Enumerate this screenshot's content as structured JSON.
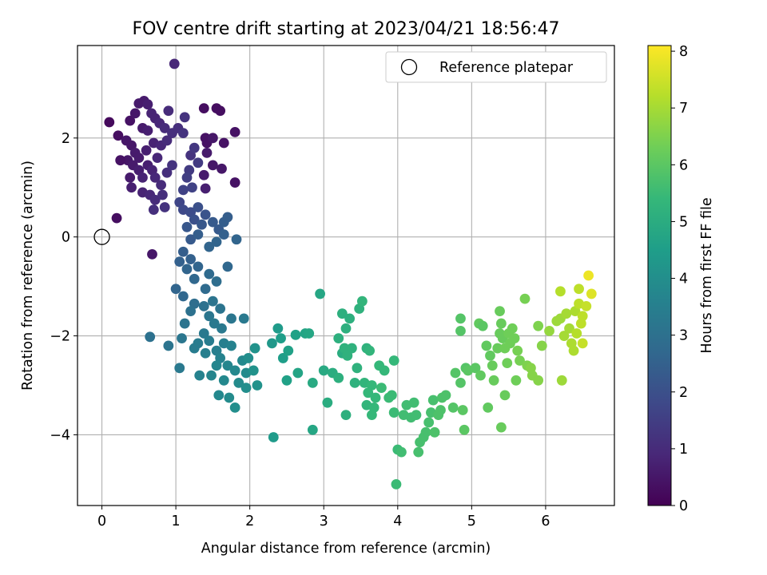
{
  "chart_data": {
    "type": "scatter",
    "title": "FOV centre drift starting at 2023/04/21 18:56:47",
    "xlabel": "Angular distance from reference (arcmin)",
    "ylabel": "Rotation from reference (arcmin)",
    "xlim": [
      -0.33,
      6.93
    ],
    "ylim": [
      -5.43,
      3.87
    ],
    "xticks": [
      "0",
      "1",
      "2",
      "3",
      "4",
      "5",
      "6"
    ],
    "yticks": [
      "−4",
      "−2",
      "0",
      "2"
    ],
    "grid": true,
    "legend": {
      "placement": "top-right",
      "label": "Reference platepar"
    },
    "reference": {
      "x": 0,
      "y": 0
    },
    "colorbar": {
      "label": "Hours from first FF file",
      "min": 0,
      "max": 8.1,
      "ticks": [
        "0",
        "1",
        "2",
        "3",
        "4",
        "5",
        "6",
        "7",
        "8"
      ],
      "colormap": "viridis",
      "stops": [
        "#440154",
        "#482878",
        "#3e4989",
        "#31688e",
        "#26828e",
        "#1f9e89",
        "#35b779",
        "#6ece58",
        "#b5de2b",
        "#fde725"
      ]
    },
    "points": [
      [
        0.1,
        2.32,
        0.2
      ],
      [
        0.22,
        2.05,
        0.3
      ],
      [
        0.33,
        1.95,
        0.5
      ],
      [
        0.38,
        2.35,
        0.4
      ],
      [
        0.45,
        2.5,
        0.5
      ],
      [
        0.5,
        2.7,
        0.6
      ],
      [
        0.57,
        2.75,
        0.6
      ],
      [
        0.62,
        2.68,
        0.7
      ],
      [
        0.67,
        2.5,
        0.8
      ],
      [
        0.72,
        2.4,
        0.8
      ],
      [
        0.55,
        2.2,
        0.6
      ],
      [
        0.62,
        2.15,
        0.7
      ],
      [
        0.78,
        2.3,
        0.9
      ],
      [
        0.85,
        2.2,
        1.0
      ],
      [
        0.9,
        2.55,
        1.0
      ],
      [
        0.95,
        2.1,
        1.1
      ],
      [
        1.03,
        2.2,
        1.1
      ],
      [
        1.12,
        2.42,
        1.2
      ],
      [
        1.1,
        2.1,
        1.2
      ],
      [
        0.4,
        1.85,
        0.5
      ],
      [
        0.45,
        1.7,
        0.6
      ],
      [
        0.5,
        1.6,
        0.6
      ],
      [
        0.6,
        1.75,
        0.7
      ],
      [
        0.7,
        1.9,
        0.8
      ],
      [
        0.75,
        1.6,
        0.9
      ],
      [
        0.8,
        1.85,
        0.9
      ],
      [
        0.88,
        1.95,
        1.0
      ],
      [
        0.98,
        3.5,
        0.9
      ],
      [
        0.35,
        1.55,
        0.5
      ],
      [
        0.42,
        1.45,
        0.6
      ],
      [
        0.5,
        1.35,
        0.7
      ],
      [
        0.55,
        1.2,
        0.8
      ],
      [
        0.62,
        1.45,
        0.7
      ],
      [
        0.68,
        1.35,
        0.8
      ],
      [
        0.72,
        1.2,
        0.9
      ],
      [
        0.8,
        1.05,
        1.0
      ],
      [
        0.88,
        1.3,
        1.1
      ],
      [
        0.95,
        1.45,
        1.2
      ],
      [
        0.25,
        1.55,
        0.4
      ],
      [
        0.38,
        1.2,
        0.6
      ],
      [
        0.4,
        1.0,
        0.7
      ],
      [
        0.55,
        0.9,
        0.8
      ],
      [
        0.65,
        0.85,
        0.9
      ],
      [
        0.72,
        0.75,
        1.0
      ],
      [
        0.82,
        0.85,
        1.1
      ],
      [
        0.7,
        0.55,
        1.1
      ],
      [
        0.85,
        0.6,
        1.2
      ],
      [
        0.2,
        0.38,
        0.3
      ],
      [
        0.68,
        -0.35,
        0.5
      ],
      [
        1.38,
        2.6,
        0.3
      ],
      [
        1.55,
        2.6,
        0.3
      ],
      [
        1.6,
        2.55,
        0.3
      ],
      [
        1.4,
        2.0,
        0.4
      ],
      [
        1.42,
        1.9,
        0.4
      ],
      [
        1.5,
        2.0,
        0.5
      ],
      [
        1.65,
        1.9,
        0.4
      ],
      [
        1.8,
        2.12,
        0.4
      ],
      [
        1.42,
        1.7,
        0.6
      ],
      [
        1.5,
        1.45,
        0.5
      ],
      [
        1.62,
        1.38,
        0.5
      ],
      [
        1.8,
        1.1,
        0.4
      ],
      [
        1.38,
        1.25,
        0.6
      ],
      [
        1.4,
        0.98,
        0.7
      ],
      [
        1.2,
        1.65,
        1.2
      ],
      [
        1.25,
        1.8,
        1.3
      ],
      [
        1.3,
        1.5,
        1.4
      ],
      [
        1.18,
        1.35,
        1.4
      ],
      [
        1.15,
        1.2,
        1.5
      ],
      [
        1.22,
        1.0,
        1.6
      ],
      [
        1.1,
        0.95,
        1.6
      ],
      [
        1.05,
        0.7,
        1.7
      ],
      [
        1.1,
        0.55,
        1.8
      ],
      [
        1.2,
        0.5,
        1.9
      ],
      [
        1.3,
        0.6,
        2.0
      ],
      [
        1.25,
        0.35,
        2.0
      ],
      [
        1.4,
        0.45,
        2.1
      ],
      [
        1.35,
        0.25,
        2.2
      ],
      [
        1.5,
        0.3,
        2.3
      ],
      [
        1.58,
        0.15,
        2.3
      ],
      [
        1.15,
        0.2,
        2.2
      ],
      [
        1.2,
        -0.05,
        2.3
      ],
      [
        1.3,
        0.05,
        2.4
      ],
      [
        1.1,
        -0.3,
        2.4
      ],
      [
        1.2,
        -0.45,
        2.5
      ],
      [
        1.45,
        -0.2,
        2.6
      ],
      [
        1.55,
        -0.1,
        2.6
      ],
      [
        1.65,
        0.3,
        2.4
      ],
      [
        1.7,
        0.4,
        2.4
      ],
      [
        1.65,
        0.05,
        2.5
      ],
      [
        1.82,
        -0.05,
        2.6
      ],
      [
        1.7,
        -0.6,
        2.7
      ],
      [
        1.05,
        -0.5,
        2.5
      ],
      [
        1.15,
        -0.65,
        2.6
      ],
      [
        1.25,
        -0.85,
        2.7
      ],
      [
        1.3,
        -0.6,
        2.6
      ],
      [
        1.45,
        -0.75,
        2.8
      ],
      [
        1.55,
        -0.9,
        2.9
      ],
      [
        1.4,
        -1.05,
        2.8
      ],
      [
        1.0,
        -1.05,
        2.6
      ],
      [
        1.1,
        -1.2,
        2.7
      ],
      [
        1.25,
        -1.35,
        2.9
      ],
      [
        1.38,
        -1.4,
        3.0
      ],
      [
        1.5,
        -1.3,
        3.1
      ],
      [
        1.6,
        -1.45,
        3.1
      ],
      [
        1.2,
        -1.5,
        3.0
      ],
      [
        1.45,
        -1.6,
        3.2
      ],
      [
        1.12,
        -1.75,
        3.1
      ],
      [
        1.52,
        -1.75,
        3.3
      ],
      [
        1.62,
        -1.85,
        3.3
      ],
      [
        1.75,
        -1.65,
        3.2
      ],
      [
        1.92,
        -1.65,
        3.3
      ],
      [
        1.38,
        -1.95,
        3.3
      ],
      [
        1.3,
        -2.15,
        3.4
      ],
      [
        1.45,
        -2.1,
        3.4
      ],
      [
        1.4,
        -2.35,
        3.5
      ],
      [
        1.55,
        -2.3,
        3.5
      ],
      [
        1.65,
        -2.15,
        3.5
      ],
      [
        1.75,
        -2.2,
        3.6
      ],
      [
        1.6,
        -2.45,
        3.6
      ],
      [
        1.55,
        -2.6,
        3.7
      ],
      [
        1.7,
        -2.6,
        3.7
      ],
      [
        1.8,
        -2.7,
        3.8
      ],
      [
        1.9,
        -2.5,
        3.8
      ],
      [
        1.95,
        -2.75,
        3.9
      ],
      [
        1.85,
        -2.95,
        3.9
      ],
      [
        1.65,
        -2.9,
        3.8
      ],
      [
        1.48,
        -2.8,
        3.7
      ],
      [
        1.32,
        -2.8,
        3.6
      ],
      [
        1.58,
        -3.2,
        3.8
      ],
      [
        1.72,
        -3.25,
        3.9
      ],
      [
        1.8,
        -3.45,
        4.0
      ],
      [
        1.95,
        -3.05,
        4.0
      ],
      [
        2.1,
        -3.0,
        4.1
      ],
      [
        2.05,
        -2.7,
        4.1
      ],
      [
        1.98,
        -2.45,
        4.0
      ],
      [
        2.07,
        -2.25,
        4.1
      ],
      [
        0.65,
        -2.02,
        3.0
      ],
      [
        0.9,
        -2.2,
        3.1
      ],
      [
        1.08,
        -2.05,
        3.2
      ],
      [
        1.05,
        -2.65,
        3.3
      ],
      [
        1.25,
        -2.25,
        3.4
      ],
      [
        2.32,
        -4.05,
        4.4
      ],
      [
        2.3,
        -2.15,
        4.3
      ],
      [
        2.38,
        -1.85,
        4.4
      ],
      [
        2.45,
        -2.45,
        4.5
      ],
      [
        2.5,
        -2.9,
        4.6
      ],
      [
        2.42,
        -2.05,
        4.5
      ],
      [
        2.52,
        -2.3,
        4.6
      ],
      [
        2.62,
        -1.98,
        4.6
      ],
      [
        2.65,
        -2.75,
        4.7
      ],
      [
        2.75,
        -1.95,
        4.7
      ],
      [
        2.8,
        -1.95,
        4.8
      ],
      [
        2.85,
        -3.9,
        4.8
      ],
      [
        2.85,
        -2.95,
        4.9
      ],
      [
        2.95,
        -1.15,
        4.8
      ],
      [
        3.0,
        -2.7,
        4.9
      ],
      [
        3.05,
        -3.35,
        5.0
      ],
      [
        3.12,
        -2.75,
        5.0
      ],
      [
        3.2,
        -2.85,
        5.1
      ],
      [
        3.25,
        -2.35,
        5.0
      ],
      [
        3.2,
        -2.05,
        5.1
      ],
      [
        3.25,
        -1.55,
        5.1
      ],
      [
        3.3,
        -1.85,
        5.1
      ],
      [
        3.35,
        -1.65,
        5.1
      ],
      [
        3.28,
        -2.25,
        5.2
      ],
      [
        3.32,
        -2.4,
        5.2
      ],
      [
        3.38,
        -2.25,
        5.2
      ],
      [
        3.42,
        -2.95,
        5.2
      ],
      [
        3.3,
        -3.6,
        5.1
      ],
      [
        3.45,
        -2.65,
        5.2
      ],
      [
        3.48,
        -1.45,
        5.2
      ],
      [
        3.52,
        -1.3,
        5.3
      ],
      [
        3.55,
        -2.95,
        5.3
      ],
      [
        3.58,
        -2.25,
        5.2
      ],
      [
        3.62,
        -2.3,
        5.3
      ],
      [
        3.65,
        -3.0,
        5.4
      ],
      [
        3.6,
        -3.15,
        5.4
      ],
      [
        3.58,
        -3.4,
        5.3
      ],
      [
        3.68,
        -3.45,
        5.4
      ],
      [
        3.65,
        -3.6,
        5.4
      ],
      [
        3.7,
        -3.25,
        5.4
      ],
      [
        3.75,
        -2.6,
        5.4
      ],
      [
        3.78,
        -3.05,
        5.5
      ],
      [
        3.82,
        -2.7,
        5.4
      ],
      [
        3.88,
        -3.25,
        5.5
      ],
      [
        3.92,
        -3.2,
        5.5
      ],
      [
        3.95,
        -2.5,
        5.4
      ],
      [
        3.95,
        -3.55,
        5.5
      ],
      [
        4.0,
        -4.3,
        5.5
      ],
      [
        4.05,
        -4.35,
        5.6
      ],
      [
        4.08,
        -3.6,
        5.6
      ],
      [
        4.12,
        -3.4,
        5.6
      ],
      [
        4.18,
        -3.65,
        5.6
      ],
      [
        4.22,
        -3.35,
        5.6
      ],
      [
        4.25,
        -3.6,
        5.6
      ],
      [
        4.3,
        -4.15,
        5.7
      ],
      [
        4.28,
        -4.35,
        5.7
      ],
      [
        3.98,
        -5.0,
        5.5
      ],
      [
        4.35,
        -4.05,
        5.7
      ],
      [
        4.38,
        -3.95,
        5.7
      ],
      [
        4.42,
        -3.75,
        5.7
      ],
      [
        4.45,
        -3.55,
        5.7
      ],
      [
        4.48,
        -3.3,
        5.7
      ],
      [
        4.5,
        -3.95,
        5.8
      ],
      [
        4.55,
        -3.6,
        5.8
      ],
      [
        4.58,
        -3.5,
        5.8
      ],
      [
        4.6,
        -3.25,
        5.8
      ],
      [
        4.65,
        -3.2,
        5.8
      ],
      [
        4.75,
        -3.45,
        5.9
      ],
      [
        4.78,
        -2.75,
        5.9
      ],
      [
        4.85,
        -2.95,
        5.9
      ],
      [
        4.88,
        -3.5,
        6.0
      ],
      [
        4.9,
        -3.9,
        6.0
      ],
      [
        4.92,
        -2.65,
        5.9
      ],
      [
        4.95,
        -2.7,
        6.0
      ],
      [
        4.85,
        -1.65,
        5.9
      ],
      [
        4.85,
        -1.9,
        5.9
      ],
      [
        5.05,
        -2.65,
        6.0
      ],
      [
        5.12,
        -2.8,
        6.1
      ],
      [
        5.1,
        -1.75,
        6.1
      ],
      [
        5.15,
        -1.8,
        6.0
      ],
      [
        5.2,
        -2.2,
        6.1
      ],
      [
        5.25,
        -2.4,
        6.1
      ],
      [
        5.22,
        -3.45,
        6.1
      ],
      [
        5.28,
        -2.6,
        6.2
      ],
      [
        5.3,
        -2.9,
        6.2
      ],
      [
        5.35,
        -2.25,
        6.2
      ],
      [
        5.38,
        -1.5,
        6.2
      ],
      [
        5.4,
        -1.75,
        6.2
      ],
      [
        5.38,
        -1.95,
        6.2
      ],
      [
        5.42,
        -2.05,
        6.2
      ],
      [
        5.45,
        -2.25,
        6.3
      ],
      [
        5.48,
        -2.55,
        6.3
      ],
      [
        5.5,
        -1.95,
        6.3
      ],
      [
        5.52,
        -2.15,
        6.3
      ],
      [
        5.55,
        -1.85,
        6.3
      ],
      [
        5.58,
        -2.05,
        6.3
      ],
      [
        5.6,
        -2.9,
        6.3
      ],
      [
        5.4,
        -3.85,
        6.2
      ],
      [
        5.45,
        -3.2,
        6.2
      ],
      [
        5.62,
        -2.3,
        6.4
      ],
      [
        5.65,
        -2.5,
        6.4
      ],
      [
        5.72,
        -1.25,
        6.4
      ],
      [
        5.75,
        -2.6,
        6.5
      ],
      [
        5.8,
        -2.65,
        6.6
      ],
      [
        5.82,
        -2.8,
        6.6
      ],
      [
        5.9,
        -2.9,
        6.6
      ],
      [
        5.9,
        -1.8,
        6.5
      ],
      [
        5.95,
        -2.2,
        6.6
      ],
      [
        6.05,
        -1.9,
        6.8
      ],
      [
        6.15,
        -1.7,
        6.9
      ],
      [
        6.2,
        -1.65,
        6.9
      ],
      [
        6.22,
        -2.9,
        6.9
      ],
      [
        6.28,
        -1.55,
        7.0
      ],
      [
        6.25,
        -2.0,
        7.0
      ],
      [
        6.32,
        -1.85,
        7.0
      ],
      [
        6.35,
        -2.15,
        7.1
      ],
      [
        6.38,
        -2.3,
        7.1
      ],
      [
        6.4,
        -1.5,
        7.1
      ],
      [
        6.42,
        -1.95,
        7.2
      ],
      [
        6.45,
        -1.35,
        7.3
      ],
      [
        6.48,
        -1.75,
        7.3
      ],
      [
        6.5,
        -1.6,
        7.3
      ],
      [
        6.5,
        -2.15,
        7.4
      ],
      [
        6.55,
        -1.4,
        7.4
      ],
      [
        6.2,
        -1.1,
        7.2
      ],
      [
        6.45,
        -1.05,
        7.3
      ],
      [
        6.62,
        -1.15,
        7.7
      ],
      [
        6.58,
        -0.78,
        7.9
      ]
    ]
  }
}
